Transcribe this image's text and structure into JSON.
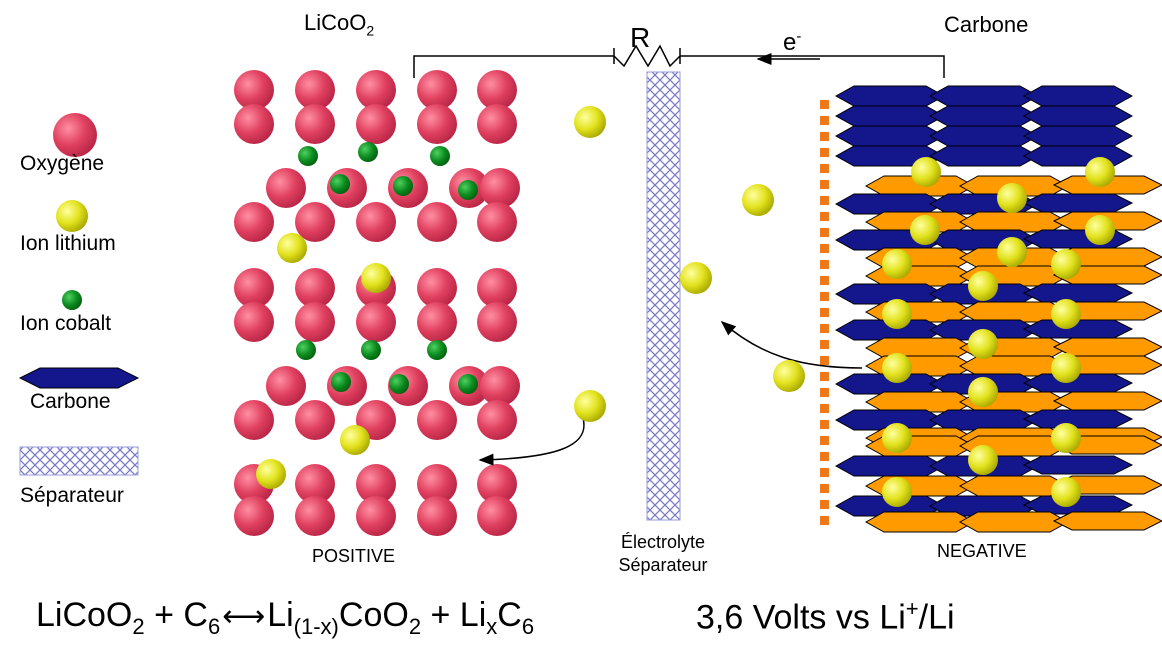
{
  "labels": {
    "cathode_formula_main": "LiCoO",
    "cathode_formula_sub": "2",
    "anode_title": "Carbone",
    "resistor": "R",
    "electron_main": "e",
    "electron_sup": "-",
    "positive": "POSITIVE",
    "negative": "NEGATIVE",
    "electrolyte_line1": "Électrolyte",
    "electrolyte_line2": "Séparateur"
  },
  "legend": {
    "oxygen": "Oxygène",
    "lithium": "Ion lithium",
    "cobalt": "Ion cobalt",
    "carbon": "Carbone",
    "separator": "Séparateur"
  },
  "equation": {
    "part1": "LiCoO",
    "part1_sub": "2",
    "part2": " + C",
    "part2_sub": "6",
    "arrow": "⟷",
    "part3": "Li",
    "part3_sub": "(1-x)",
    "part4": "CoO",
    "part4_sub": "2",
    "part5": " + Li",
    "part5_sub": "x",
    "part6": "C",
    "part6_sub": "6"
  },
  "voltage": {
    "value": "3,6 Volts vs Li",
    "sup": "+",
    "suffix": "/Li"
  },
  "colors": {
    "oxygen": "#e0405f",
    "lithium": "#e2e21e",
    "cobalt": "#0a8a1e",
    "carbon": "#14168c",
    "intercalated": "#ff9a00",
    "collector": "#f07818",
    "separator": "#8080cc"
  }
}
